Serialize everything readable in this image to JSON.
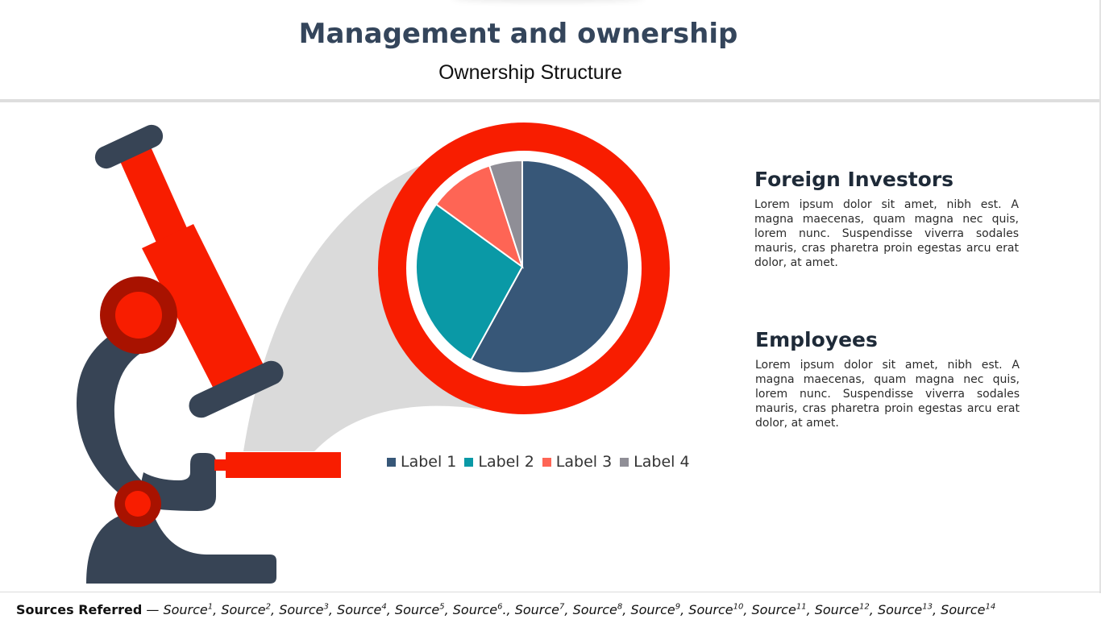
{
  "header": {
    "title": "Management and ownership",
    "subtitle": "Ownership Structure"
  },
  "colors": {
    "title": "#34455b",
    "microscope_dark": "#374455",
    "microscope_red": "#f81d00",
    "microscope_dark_red": "#a81200",
    "lens_ring": "#f81d00",
    "beam": "#dadada"
  },
  "chart_data": {
    "type": "pie",
    "title": "",
    "labels": [
      "Label 1",
      "Label 2",
      "Label 3",
      "Label 4"
    ],
    "values": [
      58,
      27,
      10,
      5
    ],
    "colors": [
      "#375778",
      "#0a99a6",
      "#fe6555",
      "#8f8e96"
    ],
    "legend": "bottom",
    "start_angle_deg": 0,
    "direction": "clockwise"
  },
  "blocks": [
    {
      "title": "Foreign Investors",
      "text": "Lorem ipsum dolor sit amet, nibh est. A magna maecenas, quam magna nec quis, lorem nunc. Suspendisse viverra sodales mauris, cras pharetra proin egestas arcu erat dolor, at amet."
    },
    {
      "title": "Employees",
      "text": "Lorem ipsum dolor sit amet, nibh est. A magna maecenas, quam magna nec quis, lorem nunc. Suspendisse viverra sodales mauris, cras pharetra proin egestas arcu erat dolor, at amet."
    }
  ],
  "footer": {
    "lead": "Sources Referred",
    "dash": " — ",
    "sources": [
      {
        "name": "Source",
        "sup": "1",
        "sep": ", "
      },
      {
        "name": "Source",
        "sup": "2",
        "sep": ", "
      },
      {
        "name": "Source",
        "sup": "3",
        "sep": ", "
      },
      {
        "name": "Source",
        "sup": "4",
        "sep": ", "
      },
      {
        "name": "Source",
        "sup": "5",
        "sep": ", "
      },
      {
        "name": "Source",
        "sup": "6",
        "sep": "., "
      },
      {
        "name": "Source",
        "sup": "7",
        "sep": ", "
      },
      {
        "name": "Source",
        "sup": "8",
        "sep": ", "
      },
      {
        "name": "Source",
        "sup": "9",
        "sep": ", "
      },
      {
        "name": "Source",
        "sup": "10",
        "sep": ", "
      },
      {
        "name": "Source",
        "sup": "11",
        "sep": ", "
      },
      {
        "name": "Source",
        "sup": "12",
        "sep": ", "
      },
      {
        "name": "Source",
        "sup": "13",
        "sep": ", "
      },
      {
        "name": "Source",
        "sup": "14",
        "sep": ""
      }
    ]
  }
}
